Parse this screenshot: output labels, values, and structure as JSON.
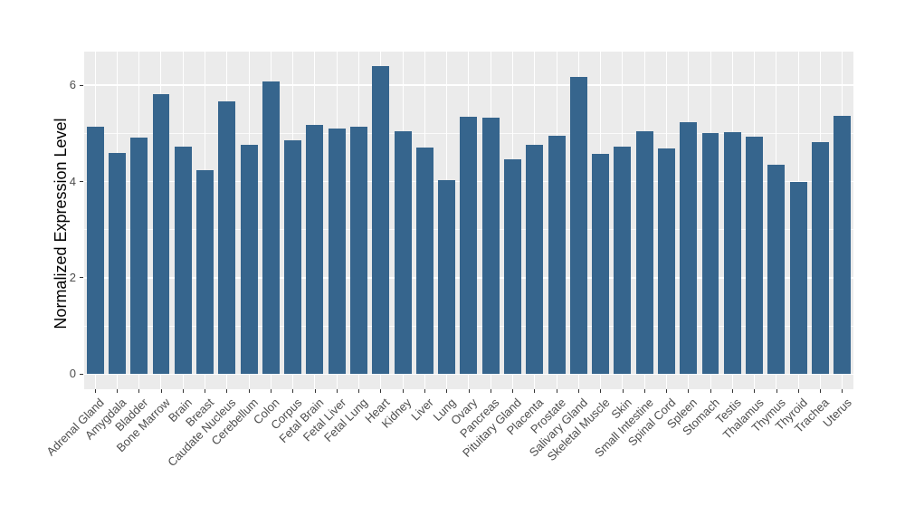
{
  "chart_data": {
    "type": "bar",
    "title": "",
    "ylabel": "Normalized Expression Level",
    "xlabel": "",
    "categories": [
      "Adrenal Gland",
      "Amygdala",
      "Bladder",
      "Bone Marrow",
      "Brain",
      "Breast",
      "Caudate Nucleus",
      "Cerebellum",
      "Colon",
      "Corpus",
      "Fetal Brain",
      "Fetal Liver",
      "Fetal Lung",
      "Heart",
      "Kidney",
      "Liver",
      "Lung",
      "Ovary",
      "Pancreas",
      "Pituitary Gland",
      "Placenta",
      "Prostate",
      "Salivary Gland",
      "Skeletal Muscle",
      "Skin",
      "Small Intestine",
      "Spinal Cord",
      "Spleen",
      "Stomach",
      "Testis",
      "Thalamus",
      "Thymus",
      "Thyroid",
      "Trachea",
      "Uterus"
    ],
    "values": [
      5.14,
      4.6,
      4.92,
      5.82,
      4.72,
      4.24,
      5.66,
      4.76,
      6.08,
      4.86,
      5.17,
      5.1,
      5.14,
      6.39,
      5.04,
      4.7,
      4.02,
      5.34,
      5.33,
      4.46,
      4.77,
      4.95,
      6.18,
      4.58,
      4.73,
      5.04,
      4.69,
      5.23,
      5.01,
      5.03,
      4.94,
      4.35,
      4.0,
      4.82,
      5.36
    ],
    "ylim": [
      -0.32,
      6.7
    ],
    "yticks_major": [
      0,
      2,
      4,
      6
    ],
    "yticks_minor": [
      1,
      3,
      5
    ],
    "x_tick_label_angle": 45,
    "grid": "on",
    "legend": "none",
    "colors": {
      "bar": "#36658D",
      "panel_bg": "#EBEBEB",
      "grid": "#FFFFFF",
      "tick_text": "#4D4D4D",
      "axis_title": "#000000",
      "tick_mark": "#333333"
    }
  }
}
